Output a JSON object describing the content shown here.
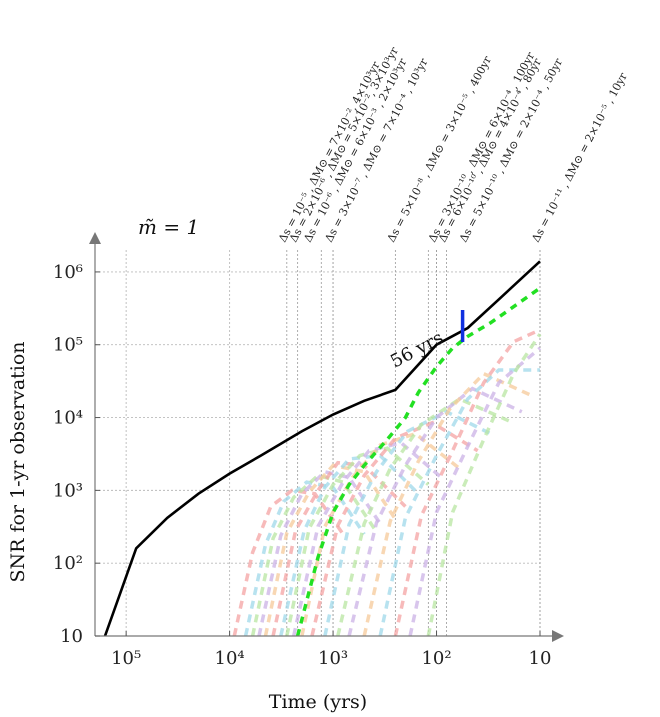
{
  "chart_data": {
    "type": "line",
    "title": "m̃ = 1",
    "xlabel": "Time (yrs)",
    "ylabel": "SNR for 1-yr observation",
    "x_scale": "log-reversed",
    "y_scale": "log",
    "xlim": [
      200000,
      10
    ],
    "ylim": [
      10,
      2000000
    ],
    "grid": true,
    "x_ticks": [
      {
        "value": 100000,
        "label": "10⁵"
      },
      {
        "value": 10000,
        "label": "10⁴"
      },
      {
        "value": 1000,
        "label": "10³"
      },
      {
        "value": 100,
        "label": "10²"
      },
      {
        "value": 10,
        "label": "10"
      }
    ],
    "y_ticks": [
      {
        "value": 10,
        "label": "10"
      },
      {
        "value": 100,
        "label": "10²"
      },
      {
        "value": 1000,
        "label": "10³"
      },
      {
        "value": 10000,
        "label": "10⁴"
      },
      {
        "value": 100000,
        "label": "10⁵"
      },
      {
        "value": 1000000,
        "label": "10⁶"
      }
    ],
    "series": [
      {
        "style": "solid",
        "color": "#000000",
        "x": [
          160000,
          80000,
          40000,
          20000,
          10000,
          5000,
          2000,
          1000,
          500,
          250,
          100,
          50,
          25,
          10
        ],
        "y": [
          10,
          160,
          420,
          900,
          1700,
          3000,
          6500,
          11000,
          17000,
          24000,
          100000,
          170000,
          420000,
          1400000
        ]
      },
      {
        "style": "dashed",
        "color": "#22e022",
        "x": [
          2200,
          1400,
          1000,
          700,
          500,
          300,
          200,
          150,
          100,
          70,
          50,
          30,
          20,
          10
        ],
        "y": [
          10,
          120,
          500,
          1200,
          2200,
          5000,
          10000,
          22000,
          50000,
          90000,
          130000,
          200000,
          300000,
          600000
        ]
      }
    ],
    "faint_curves": [
      {
        "color": "#f4a3a3",
        "x": [
          9000,
          6000,
          4000,
          2500,
          1500,
          800
        ],
        "y": [
          10,
          140,
          600,
          1000,
          900,
          250
        ]
      },
      {
        "color": "#9fd8ea",
        "x": [
          7000,
          4500,
          3000,
          1800,
          1000,
          500
        ],
        "y": [
          10,
          180,
          700,
          1300,
          1100,
          250
        ]
      },
      {
        "color": "#b8e6a2",
        "x": [
          6000,
          3800,
          2400,
          1400,
          800,
          400
        ],
        "y": [
          10,
          220,
          800,
          1600,
          1300,
          300
        ]
      },
      {
        "color": "#cbb2e6",
        "x": [
          5200,
          3200,
          2000,
          1200,
          700,
          350
        ],
        "y": [
          10,
          240,
          900,
          1800,
          1500,
          350
        ]
      },
      {
        "color": "#f6c99a",
        "x": [
          4500,
          2800,
          1700,
          1000,
          500,
          250
        ],
        "y": [
          10,
          260,
          950,
          2200,
          1800,
          400
        ]
      },
      {
        "color": "#f4a3a3",
        "x": [
          3800,
          2300,
          1400,
          900,
          500,
          200
        ],
        "y": [
          10,
          280,
          1000,
          2400,
          2200,
          600
        ]
      },
      {
        "color": "#9fd8ea",
        "x": [
          3200,
          1900,
          1200,
          700,
          350,
          150
        ],
        "y": [
          10,
          280,
          1100,
          2700,
          3000,
          900
        ]
      },
      {
        "color": "#b8e6a2",
        "x": [
          2800,
          1700,
          1000,
          550,
          300,
          120
        ],
        "y": [
          10,
          300,
          1200,
          3000,
          3800,
          1200
        ]
      },
      {
        "color": "#cbb2e6",
        "x": [
          2400,
          1400,
          800,
          450,
          220,
          90
        ],
        "y": [
          10,
          320,
          1300,
          3500,
          4500,
          1500
        ]
      },
      {
        "color": "#f6c99a",
        "x": [
          2000,
          1200,
          650,
          350,
          160,
          60
        ],
        "y": [
          10,
          320,
          1500,
          4200,
          6000,
          2000
        ]
      },
      {
        "color": "#f4a3a3",
        "x": [
          1600,
          900,
          500,
          250,
          110,
          40
        ],
        "y": [
          10,
          330,
          1600,
          5200,
          8500,
          3500
        ]
      },
      {
        "color": "#9fd8ea",
        "x": [
          1200,
          700,
          380,
          190,
          80,
          30
        ],
        "y": [
          10,
          340,
          1800,
          6500,
          12000,
          6000
        ]
      },
      {
        "color": "#b8e6a2",
        "x": [
          900,
          500,
          280,
          140,
          60,
          20
        ],
        "y": [
          10,
          350,
          2000,
          8000,
          18000,
          9000
        ]
      },
      {
        "color": "#cbb2e6",
        "x": [
          700,
          380,
          200,
          100,
          45,
          15
        ],
        "y": [
          10,
          360,
          2200,
          10000,
          25000,
          12000
        ]
      },
      {
        "color": "#f6c99a",
        "x": [
          500,
          280,
          150,
          75,
          35,
          12
        ],
        "y": [
          10,
          380,
          2500,
          13000,
          40000,
          20000
        ]
      },
      {
        "color": "#9fd8ea",
        "x": [
          350,
          200,
          100,
          50,
          25,
          10
        ],
        "y": [
          10,
          420,
          3000,
          18000,
          45000,
          45000
        ]
      },
      {
        "color": "#f4a3a3",
        "x": [
          250,
          140,
          70,
          35,
          18,
          10
        ],
        "y": [
          10,
          450,
          3500,
          30000,
          110000,
          160000
        ]
      },
      {
        "color": "#cbb2e6",
        "x": [
          180,
          100,
          50,
          25,
          10
        ],
        "y": [
          10,
          500,
          4000,
          30000,
          90000
        ]
      },
      {
        "color": "#b8e6a2",
        "x": [
          120,
          70,
          35,
          18,
          10
        ],
        "y": [
          10,
          500,
          5000,
          40000,
          140000
        ]
      }
    ],
    "vlines": [
      2800,
      2200,
      1300,
      1000,
      250,
      120,
      100,
      80,
      10
    ],
    "marker": {
      "x": 56,
      "label": "56 yrs",
      "color": "#1030e0"
    },
    "annotations": [
      {
        "x": 2800,
        "text": "Δs = 10⁻⁵ , ΔM⊙ = 7×10⁻², 4×10³yr"
      },
      {
        "x": 2200,
        "text": "Δs = 2×10⁻⁶ , ΔM⊙ = 5×10⁻², 3×10³yr"
      },
      {
        "x": 1600,
        "text": "Δs = 10⁻⁶ , ΔM⊙ = 6×10⁻³ , 2×10³yr"
      },
      {
        "x": 1000,
        "text": "Δs = 3×10⁻⁷ , ΔM⊙ = 7×10⁻⁴ , 10³yr"
      },
      {
        "x": 250,
        "text": "Δs = 5×10⁻⁸ , ΔM⊙ = 3×10⁻⁵ , 400yr"
      },
      {
        "x": 100,
        "text": "Δs = 3×10⁻¹⁰ , ΔM⊙ = 6×10⁻⁴ , 100yr"
      },
      {
        "x": 80,
        "text": "Δs = 6×10⁻¹⁰ , ΔM⊙ = 4×10⁻⁴ , 80yr"
      },
      {
        "x": 50,
        "text": "Δs = 5×10⁻¹⁰ , ΔM⊙ = 2×10⁻⁴ , 50yr"
      },
      {
        "x": 10,
        "text": "Δs = 10⁻¹¹ , ΔM⊙ = 2×10⁻⁵ , 10yr"
      }
    ]
  }
}
